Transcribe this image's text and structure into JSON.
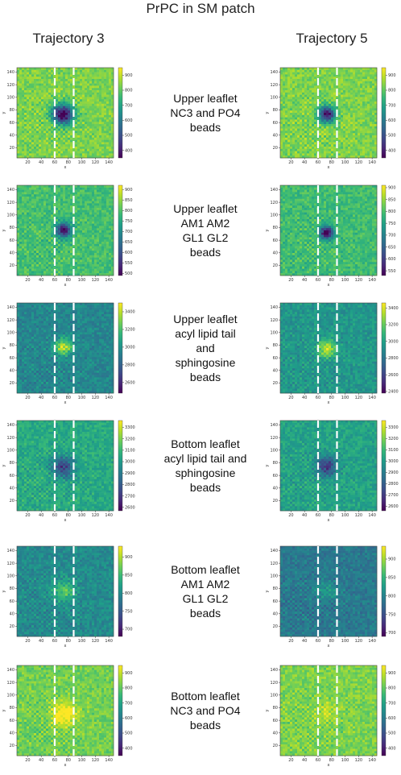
{
  "figure": {
    "title": "PrPC in SM patch",
    "columns": [
      "Trajectory 3",
      "Trajectory 5"
    ]
  },
  "rows": [
    {
      "label": [
        "Upper leaflet",
        "NC3 and PO4",
        "beads"
      ]
    },
    {
      "label": [
        "Upper leaflet",
        "AM1 AM2",
        "GL1 GL2",
        "beads"
      ]
    },
    {
      "label": [
        "Upper leaflet",
        "acyl lipid tail",
        "and",
        "sphingosine",
        "beads"
      ]
    },
    {
      "label": [
        "Bottom leaflet",
        "acyl lipid tail and",
        "sphingosine",
        "beads"
      ]
    },
    {
      "label": [
        "Bottom leaflet",
        "AM1 AM2",
        "GL1 GL2",
        "beads"
      ]
    },
    {
      "label": [
        "Bottom leaflet",
        "NC3 and PO4",
        "beads"
      ]
    }
  ],
  "chart_data": [
    {
      "type": "heatmap",
      "row": 1,
      "column": "Trajectory 3",
      "xlabel": "x",
      "ylabel": "y",
      "xticks": [
        20,
        40,
        60,
        80,
        100,
        120,
        140
      ],
      "yticks": [
        20,
        40,
        60,
        80,
        100,
        120,
        140
      ],
      "colorbar_ticks": [
        400,
        500,
        600,
        700,
        800,
        900
      ],
      "vmin": 350,
      "vmax": 950,
      "base": 830,
      "feature": {
        "x": 72,
        "y": 73,
        "strength": -0.85,
        "radius": 11
      },
      "dashed_lines_x": [
        60,
        88
      ]
    },
    {
      "type": "heatmap",
      "row": 1,
      "column": "Trajectory 5",
      "xlabel": "x",
      "ylabel": "y",
      "xticks": [
        20,
        40,
        60,
        80,
        100,
        120,
        140
      ],
      "yticks": [
        20,
        40,
        60,
        80,
        100,
        120,
        140
      ],
      "colorbar_ticks": [
        400,
        500,
        600,
        700,
        800,
        900
      ],
      "vmin": 350,
      "vmax": 950,
      "base": 830,
      "feature": {
        "x": 73,
        "y": 73,
        "strength": -0.75,
        "radius": 9
      },
      "dashed_lines_x": [
        60,
        88
      ]
    },
    {
      "type": "heatmap",
      "row": 2,
      "column": "Trajectory 3",
      "xlabel": "x",
      "ylabel": "y",
      "xticks": [
        20,
        40,
        60,
        80,
        100,
        120,
        140
      ],
      "yticks": [
        20,
        40,
        60,
        80,
        100,
        120,
        140
      ],
      "colorbar_ticks": [
        500,
        550,
        600,
        650,
        700,
        750,
        800,
        850,
        900
      ],
      "vmin": 490,
      "vmax": 920,
      "base": 790,
      "feature": {
        "x": 73,
        "y": 76,
        "strength": -0.7,
        "radius": 8
      },
      "dashed_lines_x": [
        60,
        88
      ]
    },
    {
      "type": "heatmap",
      "row": 2,
      "column": "Trajectory 5",
      "xlabel": "x",
      "ylabel": "y",
      "xticks": [
        20,
        40,
        60,
        80,
        100,
        120,
        140
      ],
      "yticks": [
        20,
        40,
        60,
        80,
        100,
        120,
        140
      ],
      "colorbar_ticks": [
        550,
        600,
        650,
        700,
        750,
        800,
        850,
        900
      ],
      "vmin": 530,
      "vmax": 910,
      "base": 790,
      "feature": {
        "x": 73,
        "y": 72,
        "strength": -0.75,
        "radius": 7
      },
      "dashed_lines_x": [
        60,
        88
      ]
    },
    {
      "type": "heatmap",
      "row": 3,
      "column": "Trajectory 3",
      "xlabel": "x",
      "ylabel": "y",
      "xticks": [
        20,
        40,
        60,
        80,
        100,
        120,
        140
      ],
      "yticks": [
        20,
        40,
        60,
        80,
        100,
        120,
        140
      ],
      "colorbar_ticks": [
        2600,
        2800,
        3000,
        3200,
        3400
      ],
      "vmin": 2480,
      "vmax": 3500,
      "base": 2950,
      "feature": {
        "x": 73,
        "y": 77,
        "strength": 0.45,
        "radius": 9
      },
      "dashed_lines_x": [
        60,
        88
      ]
    },
    {
      "type": "heatmap",
      "row": 3,
      "column": "Trajectory 5",
      "xlabel": "x",
      "ylabel": "y",
      "xticks": [
        20,
        40,
        60,
        80,
        100,
        120,
        140
      ],
      "yticks": [
        20,
        40,
        60,
        80,
        100,
        120,
        140
      ],
      "colorbar_ticks": [
        2400,
        2600,
        2800,
        3000,
        3200,
        3400
      ],
      "vmin": 2380,
      "vmax": 3460,
      "base": 2950,
      "feature": {
        "x": 73,
        "y": 75,
        "strength": 0.4,
        "radius": 9
      },
      "dashed_lines_x": [
        60,
        88
      ]
    },
    {
      "type": "heatmap",
      "row": 4,
      "column": "Trajectory 3",
      "xlabel": "x",
      "ylabel": "y",
      "xticks": [
        20,
        40,
        60,
        80,
        100,
        120,
        140
      ],
      "yticks": [
        20,
        40,
        60,
        80,
        100,
        120,
        140
      ],
      "colorbar_ticks": [
        2600,
        2700,
        2800,
        2900,
        3000,
        3100,
        3200,
        3300
      ],
      "vmin": 2570,
      "vmax": 3360,
      "base": 3050,
      "feature": {
        "x": 72,
        "y": 73,
        "strength": -0.4,
        "radius": 12
      },
      "dashed_lines_x": [
        60,
        88
      ]
    },
    {
      "type": "heatmap",
      "row": 4,
      "column": "Trajectory 5",
      "xlabel": "x",
      "ylabel": "y",
      "xticks": [
        20,
        40,
        60,
        80,
        100,
        120,
        140
      ],
      "yticks": [
        20,
        40,
        60,
        80,
        100,
        120,
        140
      ],
      "colorbar_ticks": [
        2600,
        2700,
        2800,
        2900,
        3000,
        3100,
        3200,
        3300
      ],
      "vmin": 2560,
      "vmax": 3360,
      "base": 3020,
      "feature": {
        "x": 73,
        "y": 75,
        "strength": -0.4,
        "radius": 11
      },
      "dashed_lines_x": [
        60,
        88
      ]
    },
    {
      "type": "heatmap",
      "row": 5,
      "column": "Trajectory 3",
      "xlabel": "x",
      "ylabel": "y",
      "xticks": [
        20,
        40,
        60,
        80,
        100,
        120,
        140
      ],
      "yticks": [
        20,
        40,
        60,
        80,
        100,
        120,
        140
      ],
      "colorbar_ticks": [
        700,
        750,
        800,
        850,
        900
      ],
      "vmin": 680,
      "vmax": 930,
      "base": 800,
      "feature": {
        "x": 73,
        "y": 75,
        "strength": 0.25,
        "radius": 12
      },
      "dashed_lines_x": [
        60,
        88
      ]
    },
    {
      "type": "heatmap",
      "row": 5,
      "column": "Trajectory 5",
      "xlabel": "x",
      "ylabel": "y",
      "xticks": [
        20,
        40,
        60,
        80,
        100,
        120,
        140
      ],
      "yticks": [
        20,
        40,
        60,
        80,
        100,
        120,
        140
      ],
      "colorbar_ticks": [
        700,
        750,
        800,
        850,
        900
      ],
      "vmin": 690,
      "vmax": 935,
      "base": 790,
      "feature": {
        "x": 73,
        "y": 75,
        "strength": 0.15,
        "radius": 10
      },
      "dashed_lines_x": [
        60,
        88
      ]
    },
    {
      "type": "heatmap",
      "row": 6,
      "column": "Trajectory 3",
      "xlabel": "x",
      "ylabel": "y",
      "xticks": [
        20,
        40,
        60,
        80,
        100,
        120,
        140
      ],
      "yticks": [
        20,
        40,
        60,
        80,
        100,
        120,
        140
      ],
      "colorbar_ticks": [
        400,
        500,
        600,
        700,
        800,
        900
      ],
      "vmin": 350,
      "vmax": 950,
      "base": 820,
      "feature": {
        "x": 73,
        "y": 70,
        "strength": 0.3,
        "radius": 13
      },
      "dashed_lines_x": [
        60,
        88
      ]
    },
    {
      "type": "heatmap",
      "row": 6,
      "column": "Trajectory 5",
      "xlabel": "x",
      "ylabel": "y",
      "xticks": [
        20,
        40,
        60,
        80,
        100,
        120,
        140
      ],
      "yticks": [
        20,
        40,
        60,
        80,
        100,
        120,
        140
      ],
      "colorbar_ticks": [
        400,
        500,
        600,
        700,
        800,
        900
      ],
      "vmin": 350,
      "vmax": 950,
      "base": 830,
      "feature": {
        "x": 73,
        "y": 73,
        "strength": 0.1,
        "radius": 10
      },
      "dashed_lines_x": [
        60,
        88
      ]
    }
  ]
}
